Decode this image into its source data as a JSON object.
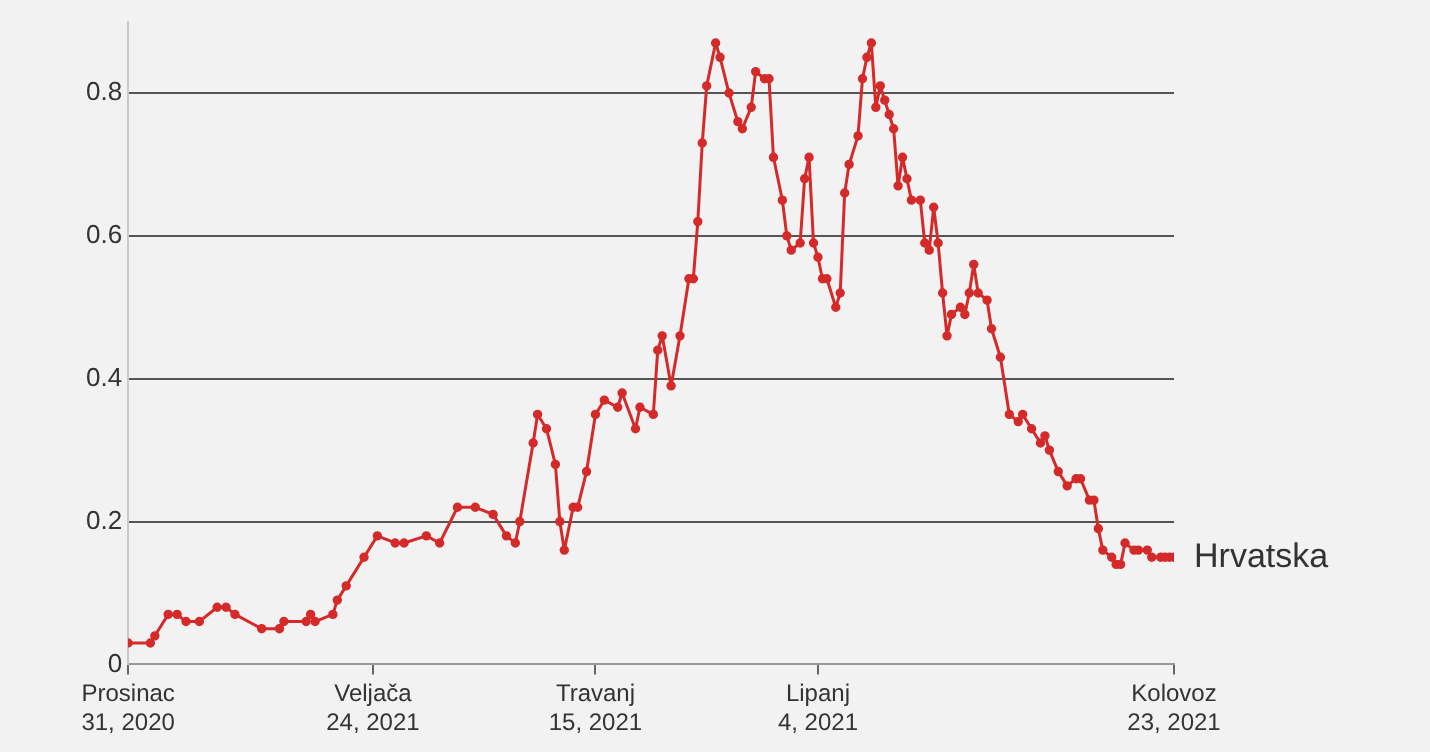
{
  "chart_data": {
    "type": "line",
    "x": [
      "2020-12-31",
      "2021-01-05",
      "2021-01-06",
      "2021-01-09",
      "2021-01-11",
      "2021-01-13",
      "2021-01-16",
      "2021-01-20",
      "2021-01-22",
      "2021-01-24",
      "2021-01-30",
      "2021-02-03",
      "2021-02-04",
      "2021-02-09",
      "2021-02-10",
      "2021-02-11",
      "2021-02-15",
      "2021-02-16",
      "2021-02-18",
      "2021-02-22",
      "2021-02-25",
      "2021-03-01",
      "2021-03-03",
      "2021-03-08",
      "2021-03-11",
      "2021-03-15",
      "2021-03-19",
      "2021-03-23",
      "2021-03-26",
      "2021-03-28",
      "2021-03-29",
      "2021-04-01",
      "2021-04-02",
      "2021-04-04",
      "2021-04-06",
      "2021-04-07",
      "2021-04-08",
      "2021-04-10",
      "2021-04-11",
      "2021-04-13",
      "2021-04-15",
      "2021-04-17",
      "2021-04-20",
      "2021-04-21",
      "2021-04-24",
      "2021-04-25",
      "2021-04-28",
      "2021-04-29",
      "2021-04-30",
      "2021-05-02",
      "2021-05-04",
      "2021-05-06",
      "2021-05-07",
      "2021-05-08",
      "2021-05-09",
      "2021-05-10",
      "2021-05-12",
      "2021-05-13",
      "2021-05-15",
      "2021-05-17",
      "2021-05-18",
      "2021-05-20",
      "2021-05-21",
      "2021-05-23",
      "2021-05-24",
      "2021-05-25",
      "2021-05-27",
      "2021-05-28",
      "2021-05-29",
      "2021-05-31",
      "2021-06-01",
      "2021-06-02",
      "2021-06-03",
      "2021-06-04",
      "2021-06-05",
      "2021-06-06",
      "2021-06-08",
      "2021-06-09",
      "2021-06-10",
      "2021-06-11",
      "2021-06-13",
      "2021-06-14",
      "2021-06-15",
      "2021-06-16",
      "2021-06-17",
      "2021-06-18",
      "2021-06-19",
      "2021-06-20",
      "2021-06-21",
      "2021-06-22",
      "2021-06-23",
      "2021-06-24",
      "2021-06-25",
      "2021-06-27",
      "2021-06-28",
      "2021-06-29",
      "2021-06-30",
      "2021-07-01",
      "2021-07-02",
      "2021-07-03",
      "2021-07-04",
      "2021-07-06",
      "2021-07-07",
      "2021-07-08",
      "2021-07-09",
      "2021-07-10",
      "2021-07-12",
      "2021-07-13",
      "2021-07-15",
      "2021-07-17",
      "2021-07-19",
      "2021-07-20",
      "2021-07-22",
      "2021-07-24",
      "2021-07-25",
      "2021-07-26",
      "2021-07-28",
      "2021-07-30",
      "2021-08-01",
      "2021-08-02",
      "2021-08-04",
      "2021-08-05",
      "2021-08-06",
      "2021-08-07",
      "2021-08-09",
      "2021-08-10",
      "2021-08-11",
      "2021-08-12",
      "2021-08-14",
      "2021-08-15",
      "2021-08-17",
      "2021-08-18",
      "2021-08-20",
      "2021-08-21",
      "2021-08-22",
      "2021-08-23"
    ],
    "series": [
      {
        "name": "Hrvatska",
        "color": "#d42a2a",
        "values": [
          0.03,
          0.03,
          0.04,
          0.07,
          0.07,
          0.06,
          0.06,
          0.08,
          0.08,
          0.07,
          0.05,
          0.05,
          0.06,
          0.06,
          0.07,
          0.06,
          0.07,
          0.09,
          0.11,
          0.15,
          0.18,
          0.17,
          0.17,
          0.18,
          0.17,
          0.22,
          0.22,
          0.21,
          0.18,
          0.17,
          0.2,
          0.31,
          0.35,
          0.33,
          0.28,
          0.2,
          0.16,
          0.22,
          0.22,
          0.27,
          0.35,
          0.37,
          0.36,
          0.38,
          0.33,
          0.36,
          0.35,
          0.44,
          0.46,
          0.39,
          0.46,
          0.54,
          0.54,
          0.62,
          0.73,
          0.81,
          0.87,
          0.85,
          0.8,
          0.76,
          0.75,
          0.78,
          0.83,
          0.82,
          0.82,
          0.71,
          0.65,
          0.6,
          0.58,
          0.59,
          0.68,
          0.71,
          0.59,
          0.57,
          0.54,
          0.54,
          0.5,
          0.52,
          0.66,
          0.7,
          0.74,
          0.82,
          0.85,
          0.87,
          0.78,
          0.81,
          0.79,
          0.77,
          0.75,
          0.67,
          0.71,
          0.68,
          0.65,
          0.65,
          0.59,
          0.58,
          0.64,
          0.59,
          0.52,
          0.46,
          0.49,
          0.5,
          0.49,
          0.52,
          0.56,
          0.52,
          0.51,
          0.47,
          0.43,
          0.35,
          0.34,
          0.35,
          0.33,
          0.31,
          0.32,
          0.3,
          0.27,
          0.25,
          0.26,
          0.26,
          0.23,
          0.23,
          0.19,
          0.16,
          0.15,
          0.14,
          0.14,
          0.17,
          0.16,
          0.16,
          0.16,
          0.15,
          0.15,
          0.15,
          0.15,
          0.15
        ]
      }
    ],
    "xlim": [
      "2020-12-31",
      "2021-08-23"
    ],
    "xticks": [
      {
        "value": "2020-12-31",
        "label": "Prosinac\n31, 2020"
      },
      {
        "value": "2021-02-24",
        "label": "Veljača\n24, 2021"
      },
      {
        "value": "2021-04-15",
        "label": "Travanj\n15, 2021"
      },
      {
        "value": "2021-06-04",
        "label": "Lipanj\n4, 2021"
      },
      {
        "value": "2021-08-23",
        "label": "Kolovoz\n23, 2021"
      }
    ],
    "ylim": [
      0,
      0.9
    ],
    "yticks": [
      0,
      0.2,
      0.4,
      0.6,
      0.8
    ],
    "grid": "y",
    "legend": false,
    "marker": "circle",
    "line_style": "solid"
  }
}
